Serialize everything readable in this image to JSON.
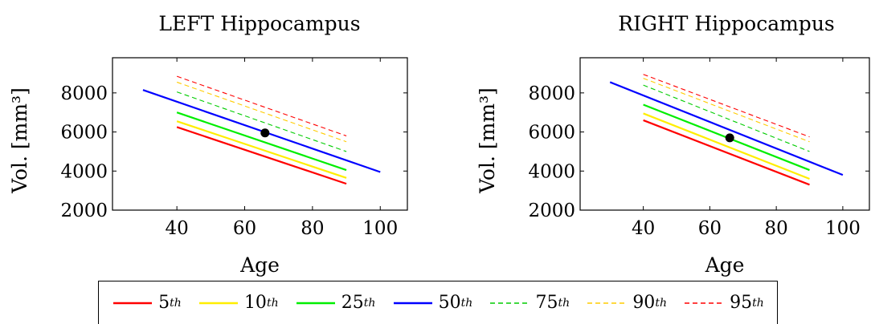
{
  "chart_data": [
    {
      "type": "line",
      "title": "LEFT Hippocampus",
      "xlabel": "Age",
      "ylabel": "Vol. [mm³]",
      "xlim": [
        21,
        108
      ],
      "ylim": [
        2000,
        9800
      ],
      "xticks": [
        "40",
        "60",
        "80",
        "100"
      ],
      "yticks": [
        "2000",
        "4000",
        "6000",
        "8000"
      ],
      "series": [
        {
          "name": "5th",
          "color": "#ff0000",
          "style": "solid",
          "x": [
            40,
            90
          ],
          "y": [
            6250,
            3350
          ]
        },
        {
          "name": "10th",
          "color": "#ffee00",
          "style": "solid",
          "x": [
            40,
            90
          ],
          "y": [
            6550,
            3650
          ]
        },
        {
          "name": "25th",
          "color": "#00ee00",
          "style": "solid",
          "x": [
            40,
            90
          ],
          "y": [
            7000,
            4050
          ]
        },
        {
          "name": "50th",
          "color": "#0000ff",
          "style": "solid",
          "x": [
            30,
            100
          ],
          "y": [
            8150,
            3950
          ]
        },
        {
          "name": "75th",
          "color": "#00cc00",
          "style": "dashed",
          "x": [
            40,
            90
          ],
          "y": [
            8050,
            5000
          ]
        },
        {
          "name": "90th",
          "color": "#ffcc00",
          "style": "dashed",
          "x": [
            40,
            90
          ],
          "y": [
            8550,
            5500
          ]
        },
        {
          "name": "95th",
          "color": "#ff0000",
          "style": "dashed",
          "x": [
            40,
            90
          ],
          "y": [
            8850,
            5800
          ]
        }
      ],
      "points": [
        {
          "x": 66,
          "y": 5950
        }
      ]
    },
    {
      "type": "line",
      "title": "RIGHT Hippocampus",
      "xlabel": "Age",
      "ylabel": "Vol. [mm³]",
      "xlim": [
        21,
        108
      ],
      "ylim": [
        2000,
        9800
      ],
      "xticks": [
        "40",
        "60",
        "80",
        "100"
      ],
      "yticks": [
        "2000",
        "4000",
        "6000",
        "8000"
      ],
      "series": [
        {
          "name": "5th",
          "color": "#ff0000",
          "style": "solid",
          "x": [
            40,
            90
          ],
          "y": [
            6600,
            3300
          ]
        },
        {
          "name": "10th",
          "color": "#ffee00",
          "style": "solid",
          "x": [
            40,
            90
          ],
          "y": [
            6950,
            3600
          ]
        },
        {
          "name": "25th",
          "color": "#00ee00",
          "style": "solid",
          "x": [
            40,
            90
          ],
          "y": [
            7400,
            4050
          ]
        },
        {
          "name": "50th",
          "color": "#0000ff",
          "style": "solid",
          "x": [
            30,
            100
          ],
          "y": [
            8550,
            3800
          ]
        },
        {
          "name": "75th",
          "color": "#00cc00",
          "style": "dashed",
          "x": [
            40,
            90
          ],
          "y": [
            8400,
            5000
          ]
        },
        {
          "name": "90th",
          "color": "#ffcc00",
          "style": "dashed",
          "x": [
            40,
            90
          ],
          "y": [
            8750,
            5500
          ]
        },
        {
          "name": "95th",
          "color": "#ff0000",
          "style": "dashed",
          "x": [
            40,
            90
          ],
          "y": [
            8950,
            5750
          ]
        }
      ],
      "points": [
        {
          "x": 66,
          "y": 5700
        }
      ]
    }
  ],
  "legend": [
    {
      "base": "5",
      "sup": "th",
      "color": "#ff0000",
      "style": "solid"
    },
    {
      "base": "10",
      "sup": "th",
      "color": "#ffee00",
      "style": "solid"
    },
    {
      "base": "25",
      "sup": "th",
      "color": "#00ee00",
      "style": "solid"
    },
    {
      "base": "50",
      "sup": "th",
      "color": "#0000ff",
      "style": "solid"
    },
    {
      "base": "75",
      "sup": "th",
      "color": "#00cc00",
      "style": "dashed"
    },
    {
      "base": "90",
      "sup": "th",
      "color": "#ffcc00",
      "style": "dashed"
    },
    {
      "base": "95",
      "sup": "th",
      "color": "#ff0000",
      "style": "dashed"
    }
  ]
}
